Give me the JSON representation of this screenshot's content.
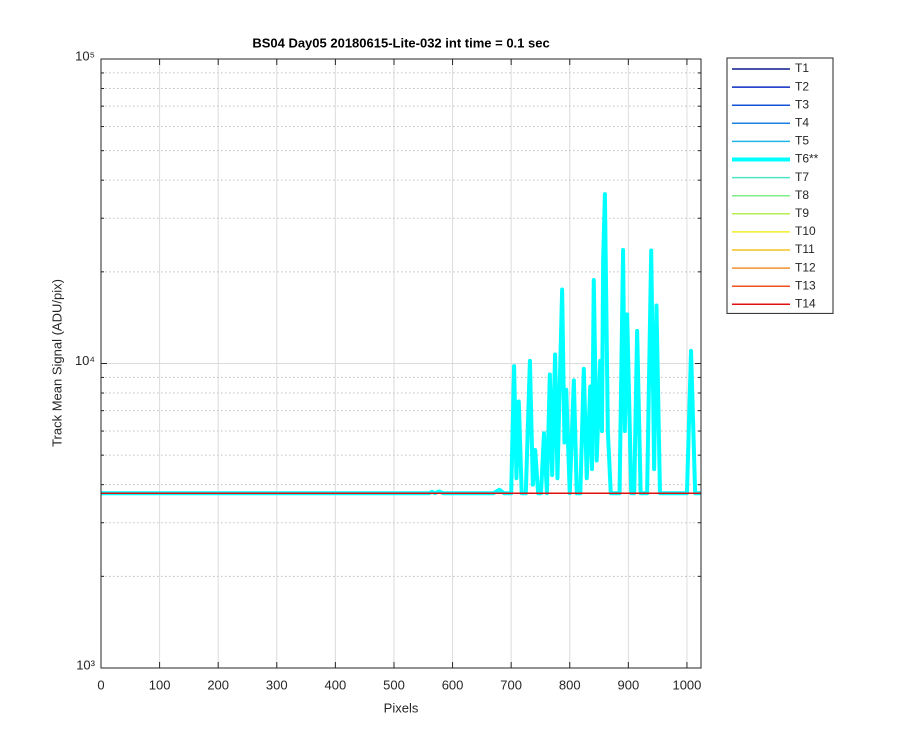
{
  "chart_data": {
    "type": "line",
    "title": "BS04 Day05 20180615-Lite-032 int time = 0.1 sec",
    "x_label": "Pixels",
    "y_label": "Track Mean Signal (ADU/pix)",
    "log_y": true,
    "grid": true,
    "legend_position": "outside-right",
    "xlim": [
      0,
      1024
    ],
    "xticks": [
      0,
      100,
      200,
      300,
      400,
      500,
      600,
      700,
      800,
      900,
      1000
    ],
    "ylim": [
      1000,
      100000
    ],
    "yticks": [
      {
        "value": 1000,
        "label": "10³"
      },
      {
        "value": 10000,
        "label": "10⁴"
      },
      {
        "value": 100000,
        "label": "10⁵"
      }
    ],
    "yminorticks": [
      2000,
      3000,
      4000,
      5000,
      6000,
      7000,
      8000,
      9000,
      20000,
      30000,
      40000,
      50000,
      60000,
      70000,
      80000,
      90000
    ],
    "series": [
      {
        "name": "T1",
        "color": "#0a1a8a",
        "line_width": 1.5,
        "x": [
          0,
          1024
        ],
        "values": [
          3750,
          3750
        ]
      },
      {
        "name": "T2",
        "color": "#0a2cc4",
        "line_width": 1.5,
        "x": [
          0,
          1024
        ],
        "values": [
          3750,
          3750
        ]
      },
      {
        "name": "T3",
        "color": "#1452d8",
        "line_width": 1.5,
        "x": [
          0,
          1024
        ],
        "values": [
          3750,
          3750
        ]
      },
      {
        "name": "T4",
        "color": "#1c80e0",
        "line_width": 1.5,
        "x": [
          0,
          1024
        ],
        "values": [
          3750,
          3750
        ]
      },
      {
        "name": "T5",
        "color": "#22b4ea",
        "line_width": 1.5,
        "x": [
          0,
          1024
        ],
        "values": [
          3750,
          3750
        ]
      },
      {
        "name": "T6**",
        "color": "#00ffff",
        "line_width": 4,
        "x": [
          0,
          560,
          565,
          570,
          577,
          584,
          670,
          680,
          688,
          700,
          705,
          709,
          713,
          718,
          725,
          732,
          737,
          741,
          746,
          751,
          756,
          761,
          766,
          770,
          775,
          779,
          787,
          791,
          794,
          800,
          807,
          812,
          818,
          824,
          829,
          835,
          838,
          841,
          846,
          852,
          855,
          857,
          860,
          865,
          870,
          885,
          891,
          894,
          898,
          905,
          910,
          915,
          921,
          932,
          939,
          944,
          948,
          954,
          1000,
          1007,
          1014,
          1024
        ],
        "values": [
          3750,
          3750,
          3790,
          3750,
          3800,
          3750,
          3750,
          3850,
          3750,
          3750,
          9800,
          4200,
          7500,
          3750,
          3750,
          10200,
          4000,
          5200,
          3750,
          3750,
          5900,
          3750,
          9200,
          4300,
          10700,
          4200,
          17500,
          5500,
          8200,
          3750,
          8800,
          3750,
          3750,
          9600,
          4200,
          8400,
          4500,
          18800,
          4800,
          10200,
          6000,
          22000,
          36000,
          6000,
          3750,
          3750,
          23600,
          6000,
          14500,
          3750,
          3750,
          12800,
          3750,
          3750,
          23500,
          4500,
          15500,
          3750,
          3750,
          11000,
          3750,
          3750
        ]
      },
      {
        "name": "T7",
        "color": "#4ee6c6",
        "line_width": 1.5,
        "x": [
          0,
          1024
        ],
        "values": [
          3750,
          3750
        ]
      },
      {
        "name": "T8",
        "color": "#80ee88",
        "line_width": 1.5,
        "x": [
          0,
          1024
        ],
        "values": [
          3750,
          3750
        ]
      },
      {
        "name": "T9",
        "color": "#b6ee50",
        "line_width": 1.5,
        "x": [
          0,
          1024
        ],
        "values": [
          3750,
          3750
        ]
      },
      {
        "name": "T10",
        "color": "#f2ee2c",
        "line_width": 1.5,
        "x": [
          0,
          1024
        ],
        "values": [
          3750,
          3750
        ]
      },
      {
        "name": "T11",
        "color": "#f4c020",
        "line_width": 1.5,
        "x": [
          0,
          1024
        ],
        "values": [
          3750,
          3750
        ]
      },
      {
        "name": "T12",
        "color": "#f59030",
        "line_width": 1.5,
        "x": [
          0,
          1024
        ],
        "values": [
          3750,
          3750
        ]
      },
      {
        "name": "T13",
        "color": "#f05020",
        "line_width": 1.5,
        "x": [
          0,
          1024
        ],
        "values": [
          3750,
          3750
        ]
      },
      {
        "name": "T14",
        "color": "#e01010",
        "line_width": 1.5,
        "x": [
          0,
          1024
        ],
        "values": [
          3750,
          3750
        ]
      }
    ]
  }
}
